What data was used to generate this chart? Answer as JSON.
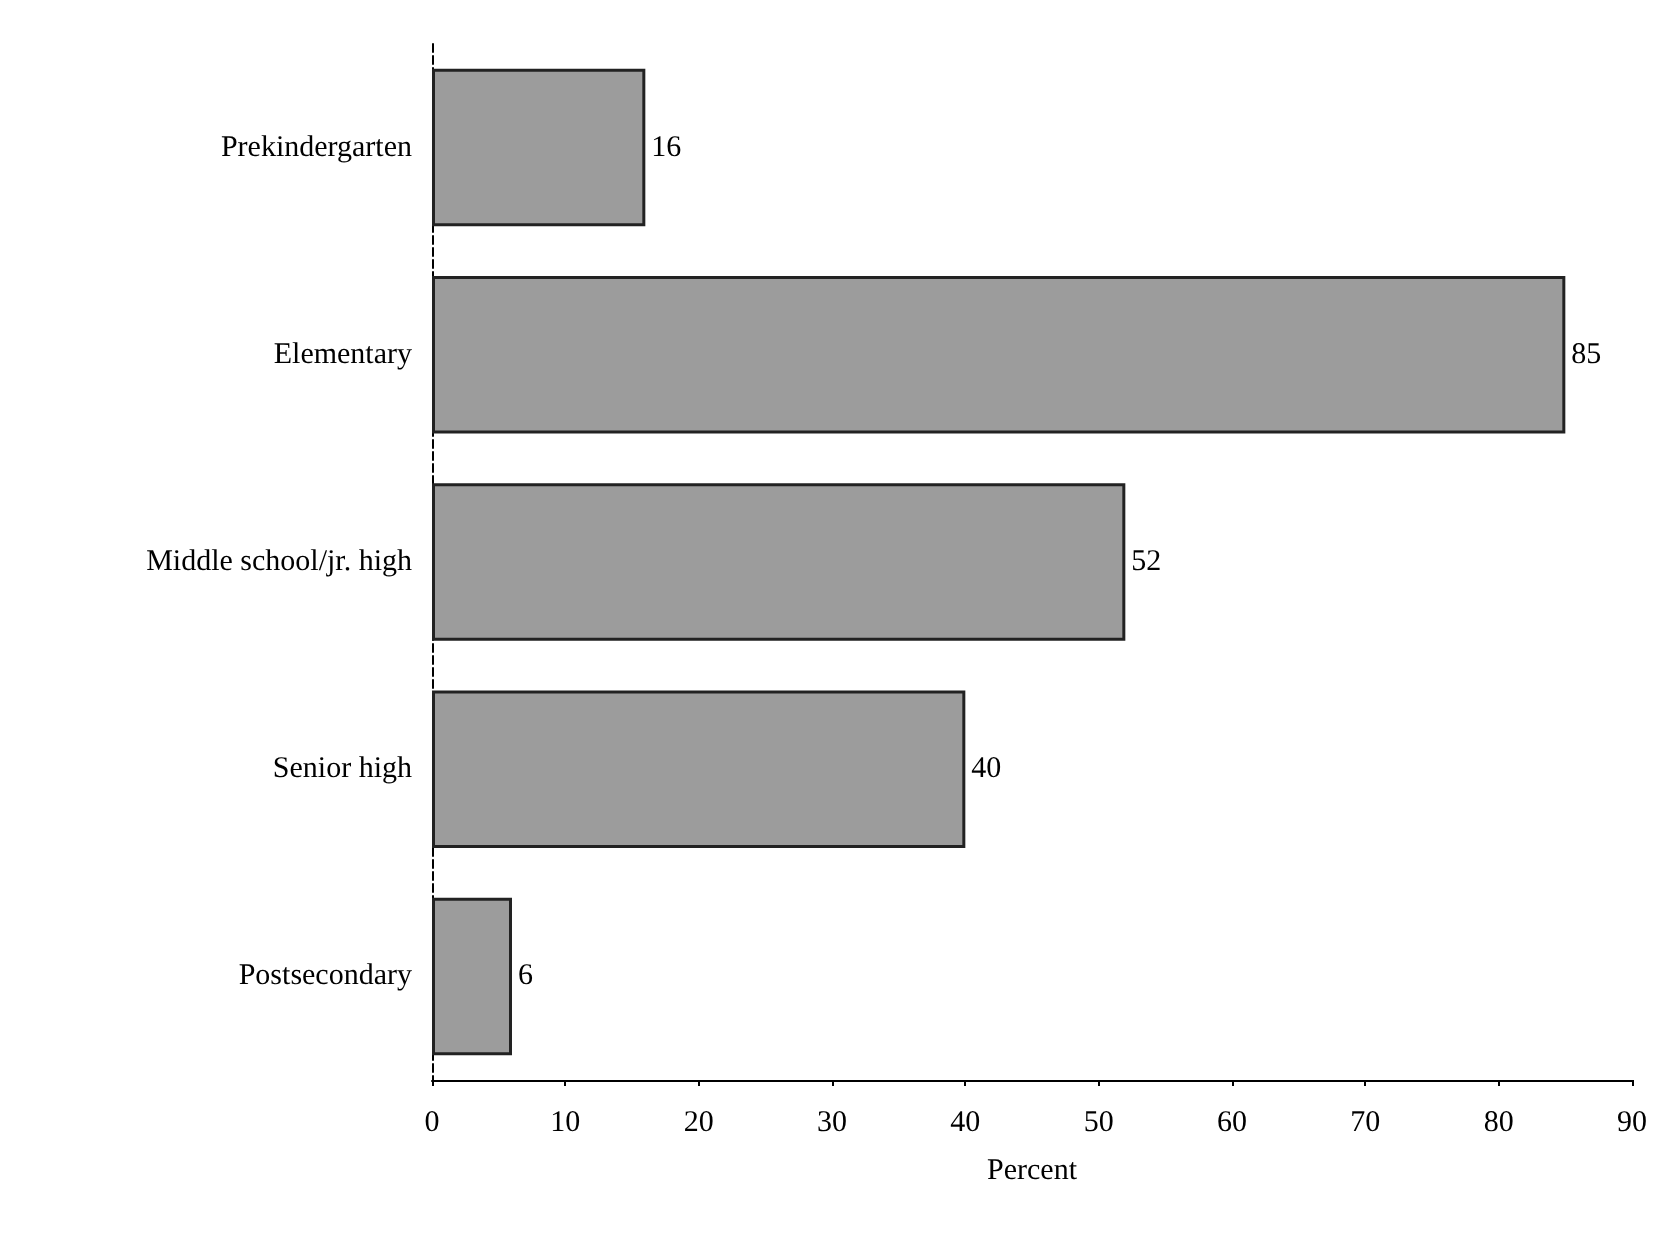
{
  "chart_data": {
    "type": "bar",
    "orientation": "horizontal",
    "xlabel": "Percent",
    "categories": [
      "Prekindergarten",
      "Elementary",
      "Middle school/jr. high",
      "Senior high",
      "Postsecondary"
    ],
    "values": [
      16,
      85,
      52,
      40,
      6
    ],
    "color": "#9c9c9c",
    "data_labels": true,
    "xlim": [
      0,
      90
    ],
    "xticks": [
      0,
      10,
      20,
      30,
      40,
      50,
      60,
      70,
      80,
      90
    ],
    "grid": false
  }
}
